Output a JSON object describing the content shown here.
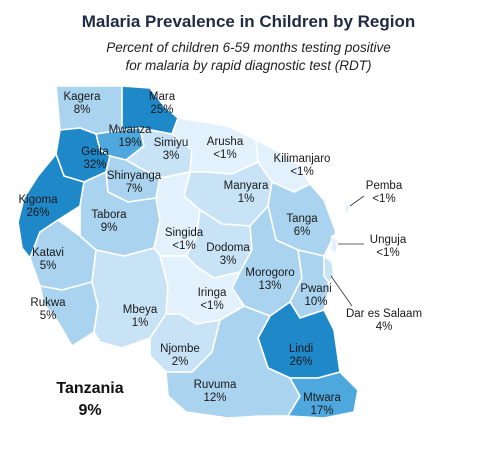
{
  "title": "Malaria Prevalence in Children by Region",
  "subtitle_line1": "Percent of children 6-59 months testing positive",
  "subtitle_line2": "for malaria by rapid diagnostic test (RDT)",
  "national": {
    "name": "Tanzania",
    "value": "9%"
  },
  "colors": {
    "lt1": "#e2f1fb",
    "lt5": "#c7e3f5",
    "r5_15": "#a9d3ef",
    "r15_25": "#4fa8dd",
    "r25p": "#1e88c9",
    "border": "#ffffff"
  },
  "regions": [
    {
      "name": "Kagera",
      "value": "8%"
    },
    {
      "name": "Mara",
      "value": "25%"
    },
    {
      "name": "Mwanza",
      "value": "19%"
    },
    {
      "name": "Geita",
      "value": "32%"
    },
    {
      "name": "Simiyu",
      "value": "3%"
    },
    {
      "name": "Arusha",
      "value": "<1%"
    },
    {
      "name": "Kilimanjaro",
      "value": "<1%"
    },
    {
      "name": "Shinyanga",
      "value": "7%"
    },
    {
      "name": "Manyara",
      "value": "1%"
    },
    {
      "name": "Kigoma",
      "value": "26%"
    },
    {
      "name": "Tabora",
      "value": "9%"
    },
    {
      "name": "Tanga",
      "value": "6%"
    },
    {
      "name": "Singida",
      "value": "<1%"
    },
    {
      "name": "Dodoma",
      "value": "3%"
    },
    {
      "name": "Katavi",
      "value": "5%"
    },
    {
      "name": "Morogoro",
      "value": "13%"
    },
    {
      "name": "Pwani",
      "value": "10%"
    },
    {
      "name": "Rukwa",
      "value": "5%"
    },
    {
      "name": "Mbeya",
      "value": "1%"
    },
    {
      "name": "Iringa",
      "value": "<1%"
    },
    {
      "name": "Njombe",
      "value": "2%"
    },
    {
      "name": "Lindi",
      "value": "26%"
    },
    {
      "name": "Ruvuma",
      "value": "12%"
    },
    {
      "name": "Mtwara",
      "value": "17%"
    },
    {
      "name": "Pemba",
      "value": "<1%"
    },
    {
      "name": "Unguja",
      "value": "<1%"
    },
    {
      "name": "Dar es Salaam",
      "value": "4%"
    }
  ]
}
